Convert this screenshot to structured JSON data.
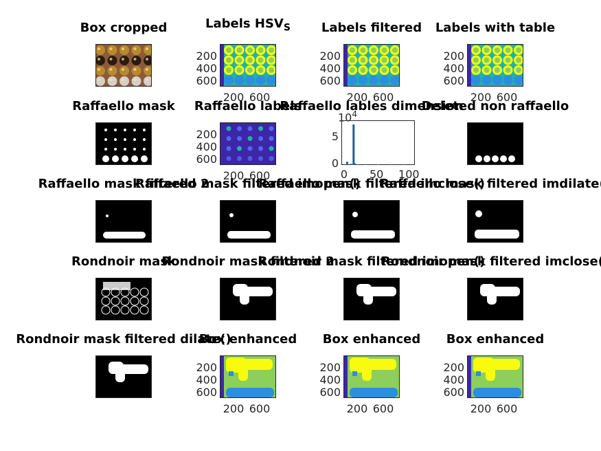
{
  "figure": {
    "panels": [
      {
        "id": "box-cropped",
        "title": "Box cropped",
        "kind": "photo"
      },
      {
        "id": "labels-hsv",
        "title": "Labels HSV",
        "title_sub": "S",
        "kind": "labels",
        "yticks": [
          "200",
          "400",
          "600"
        ],
        "xticks": [
          "200",
          "600"
        ]
      },
      {
        "id": "labels-filtered",
        "title": "Labels filtered",
        "kind": "labels",
        "yticks": [
          "200",
          "400",
          "600"
        ],
        "xticks": [
          "200",
          "600"
        ]
      },
      {
        "id": "labels-with-table",
        "title": "Labels with table",
        "kind": "labels",
        "yticks": [
          "200",
          "400",
          "600"
        ],
        "xticks": [
          "200",
          "600"
        ]
      },
      {
        "id": "raffaello-mask",
        "title": "Raffaello mask",
        "kind": "mask"
      },
      {
        "id": "raffaello-labels",
        "title": "Raffaello labels",
        "kind": "labels-dark",
        "yticks": [
          "200",
          "400",
          "600"
        ],
        "xticks": [
          "200",
          "600"
        ]
      },
      {
        "id": "raffaello-lables-dimension",
        "title": "Raffaello lables dimension",
        "kind": "histogram",
        "yticks": [
          "0",
          "5"
        ],
        "xticks": [
          "0",
          "50",
          "100"
        ],
        "exponent": "10",
        "exponent_power": "4"
      },
      {
        "id": "deleted-non-raffaello",
        "title": "Deleted non raffaello",
        "kind": "mask"
      },
      {
        "id": "raffaello-mask-filtered-2",
        "title": "Raffaello mask filtered 2",
        "kind": "mask"
      },
      {
        "id": "raffaello-mask-filtered-imopen",
        "title": "Raffaello mask filtered imopen()",
        "kind": "mask"
      },
      {
        "id": "raffaello-mask-filtered-imclose",
        "title": "Raffaello mask filtered imclose()",
        "kind": "mask"
      },
      {
        "id": "raffaello-mask-filtered-imdilate",
        "title": "Raffaello mask filtered imdilate()",
        "kind": "mask"
      },
      {
        "id": "rondnoir-mask",
        "title": "Rondnoir mask",
        "kind": "mask"
      },
      {
        "id": "rondnoir-mask-filtered-2",
        "title": "Rondnoir mask filtered 2",
        "kind": "mask"
      },
      {
        "id": "rondnoir-mask-filtered-imopen",
        "title": "Rondnoir mask filtered imopen()",
        "kind": "mask"
      },
      {
        "id": "rondnoir-mask-filtered-imclose",
        "title": "Rondnoir mask filtered imclose()",
        "kind": "mask"
      },
      {
        "id": "rondnoir-mask-filtered-dilate",
        "title": "Rondnoir mask filtered dilate()",
        "kind": "mask"
      },
      {
        "id": "box-enhanced-1",
        "title": "Box enhanced",
        "kind": "enhanced",
        "yticks": [
          "200",
          "400",
          "600"
        ],
        "xticks": [
          "200",
          "600"
        ]
      },
      {
        "id": "box-enhanced-2",
        "title": "Box enhanced",
        "kind": "enhanced",
        "yticks": [
          "200",
          "400",
          "600"
        ],
        "xticks": [
          "200",
          "600"
        ]
      },
      {
        "id": "box-enhanced-3",
        "title": "Box enhanced",
        "kind": "enhanced",
        "yticks": [
          "200",
          "400",
          "600"
        ],
        "xticks": [
          "200",
          "600"
        ]
      }
    ],
    "colors": {
      "background": "#ffffff",
      "parula_dark": "#3e26a8",
      "parula_blue": "#2a8fe0",
      "parula_teal": "#20b2aa",
      "parula_green": "#8ccf5a",
      "parula_yellow": "#f9fb0e",
      "mask_white": "#ffffff",
      "mask_black": "#000000",
      "bar": "#1f5f8f"
    }
  }
}
